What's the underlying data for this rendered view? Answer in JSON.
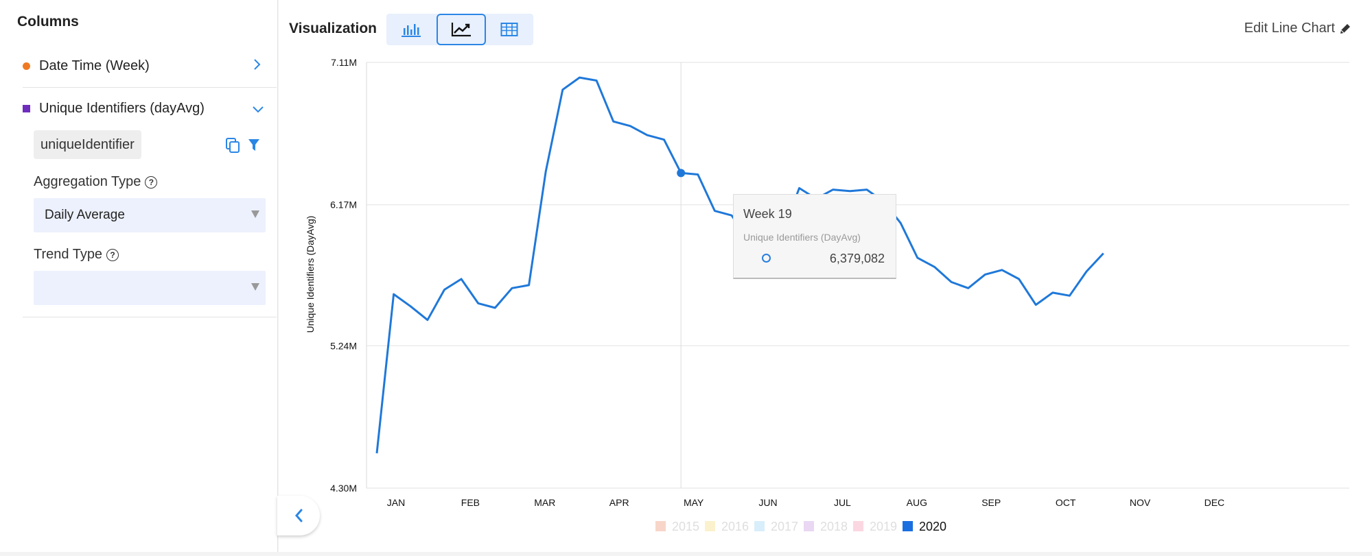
{
  "left_panel": {
    "title": "Columns",
    "columns": [
      {
        "label": "Date Time (Week)",
        "color": "#f07a22"
      },
      {
        "label": "Unique Identifiers (dayAvg)",
        "color": "#6f2dbd"
      }
    ],
    "tag": "uniqueIdentifier",
    "aggregation": {
      "label": "Aggregation Type",
      "value": "Daily Average"
    },
    "trend": {
      "label": "Trend Type",
      "value": ""
    },
    "help_icon": "?"
  },
  "header": {
    "title": "Visualization",
    "edit_label": "Edit Line Chart",
    "view_buttons": [
      "bar-chart",
      "line-chart",
      "table"
    ],
    "active_view": "line-chart"
  },
  "tooltip": {
    "week": "Week 19",
    "metric": "Unique Identifiers (DayAvg)",
    "value": "6,379,082"
  },
  "chart_data": {
    "type": "line",
    "ylabel": "Unique Identifiers (DayAvg)",
    "y_ticks": [
      "7.11M",
      "6.17M",
      "5.24M",
      "4.30M"
    ],
    "y_tick_values": [
      7.11,
      6.17,
      5.24,
      4.3
    ],
    "ylim": [
      4.3,
      7.11
    ],
    "months": [
      "JAN",
      "FEB",
      "MAR",
      "APR",
      "MAY",
      "JUN",
      "JUL",
      "AUG",
      "SEP",
      "OCT",
      "NOV",
      "DEC"
    ],
    "grid": true,
    "legend": [
      {
        "name": "2015",
        "color": "#f7d6c9",
        "active": false
      },
      {
        "name": "2016",
        "color": "#fbf1cd",
        "active": false
      },
      {
        "name": "2017",
        "color": "#d9eefb",
        "active": false
      },
      {
        "name": "2018",
        "color": "#ead7f3",
        "active": false
      },
      {
        "name": "2019",
        "color": "#fbd7e1",
        "active": false
      },
      {
        "name": "2020",
        "color": "#1a6fe0",
        "active": true
      }
    ],
    "legend_position": "bottom",
    "series": [
      {
        "name": "2020",
        "color": "#1f78d9",
        "week_of_year": [
          1,
          2,
          3,
          4,
          5,
          6,
          7,
          8,
          9,
          10,
          11,
          12,
          13,
          14,
          15,
          16,
          17,
          18,
          19,
          20,
          21,
          22,
          23,
          24,
          25,
          26,
          27,
          28,
          29,
          30,
          31,
          32,
          33,
          34,
          35,
          36,
          37,
          38,
          39,
          40,
          41,
          42,
          43,
          44
        ],
        "values": [
          4.53,
          5.58,
          5.5,
          5.41,
          5.61,
          5.68,
          5.52,
          5.49,
          5.62,
          5.64,
          6.39,
          6.93,
          7.01,
          6.99,
          6.72,
          6.69,
          6.63,
          6.6,
          6.38,
          6.37,
          6.13,
          6.1,
          5.93,
          5.92,
          5.98,
          6.28,
          6.21,
          6.27,
          6.26,
          6.27,
          6.19,
          6.05,
          5.82,
          5.76,
          5.66,
          5.62,
          5.71,
          5.74,
          5.68,
          5.51,
          5.59,
          5.57,
          5.73,
          5.85
        ]
      }
    ],
    "highlight_index": 18
  }
}
